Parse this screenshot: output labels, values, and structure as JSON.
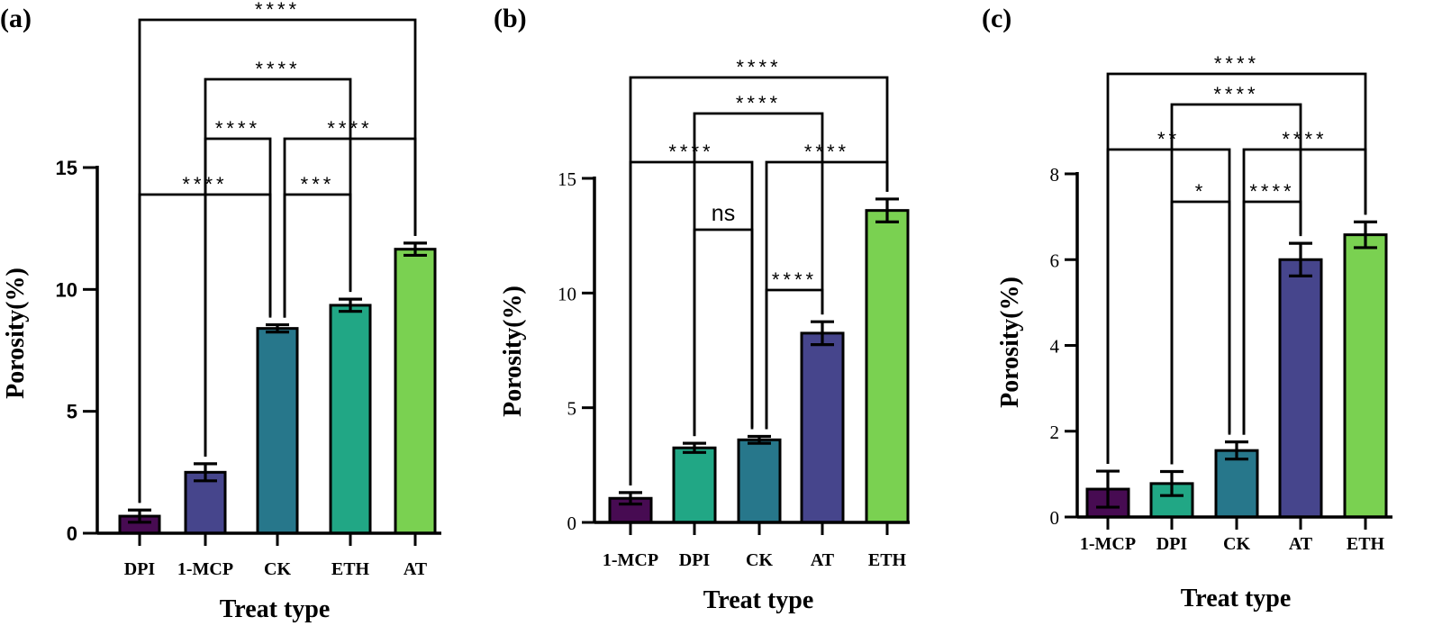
{
  "chart_data": [
    {
      "type": "bar",
      "panel_label": "(a)",
      "title": "",
      "xlabel": "Treat type",
      "ylabel": "Porosity(%)",
      "ylim": [
        0,
        15
      ],
      "yticks": [
        0,
        5,
        10,
        15
      ],
      "categories": [
        "DPI",
        "1-MCP",
        "CK",
        "ETH",
        "AT"
      ],
      "values": [
        0.7,
        2.5,
        8.4,
        9.35,
        11.65
      ],
      "errors": [
        0.25,
        0.35,
        0.15,
        0.25,
        0.25
      ],
      "colors": [
        "#470b52",
        "#46458c",
        "#27778b",
        "#21a785",
        "#7ad151"
      ],
      "comparisons": [
        {
          "from": "CK",
          "to": "ETH",
          "label": "***"
        },
        {
          "from": "DPI",
          "to": "CK",
          "label": "****"
        },
        {
          "from": "1-MCP",
          "to": "CK",
          "label": "****"
        },
        {
          "from": "CK",
          "to": "AT",
          "label": "****"
        },
        {
          "from": "1-MCP",
          "to": "ETH",
          "label": "****"
        },
        {
          "from": "DPI",
          "to": "AT",
          "label": "****"
        }
      ]
    },
    {
      "type": "bar",
      "panel_label": "(b)",
      "title": "",
      "xlabel": "Treat type",
      "ylabel": "Porosity(%)",
      "ylim": [
        0,
        15
      ],
      "yticks": [
        0,
        5,
        10,
        15
      ],
      "categories": [
        "1-MCP",
        "DPI",
        "CK",
        "AT",
        "ETH"
      ],
      "values": [
        1.05,
        3.25,
        3.6,
        8.25,
        13.6
      ],
      "errors": [
        0.25,
        0.2,
        0.15,
        0.5,
        0.5
      ],
      "colors": [
        "#470b52",
        "#21a785",
        "#27778b",
        "#46458c",
        "#7ad151"
      ],
      "comparisons": [
        {
          "from": "CK",
          "to": "AT",
          "label": "****"
        },
        {
          "from": "DPI",
          "to": "CK",
          "label": "ns"
        },
        {
          "from": "1-MCP",
          "to": "CK",
          "label": "****"
        },
        {
          "from": "CK",
          "to": "ETH",
          "label": "****"
        },
        {
          "from": "DPI",
          "to": "AT",
          "label": "****"
        },
        {
          "from": "1-MCP",
          "to": "ETH",
          "label": "****"
        }
      ]
    },
    {
      "type": "bar",
      "panel_label": "(c)",
      "title": "",
      "xlabel": "Treat type",
      "ylabel": "Porosity(%)",
      "ylim": [
        0,
        8
      ],
      "yticks": [
        0,
        2,
        4,
        6,
        8
      ],
      "categories": [
        "1-MCP",
        "DPI",
        "CK",
        "AT",
        "ETH"
      ],
      "values": [
        0.65,
        0.78,
        1.55,
        6.0,
        6.58
      ],
      "errors": [
        0.42,
        0.28,
        0.2,
        0.38,
        0.3
      ],
      "colors": [
        "#470b52",
        "#21a785",
        "#27778b",
        "#46458c",
        "#7ad151"
      ],
      "comparisons": [
        {
          "from": "DPI",
          "to": "CK",
          "label": "*"
        },
        {
          "from": "CK",
          "to": "AT",
          "label": "****"
        },
        {
          "from": "1-MCP",
          "to": "CK",
          "label": "**"
        },
        {
          "from": "CK",
          "to": "ETH",
          "label": "****"
        },
        {
          "from": "DPI",
          "to": "AT",
          "label": "****"
        },
        {
          "from": "1-MCP",
          "to": "ETH",
          "label": "****"
        }
      ]
    }
  ]
}
